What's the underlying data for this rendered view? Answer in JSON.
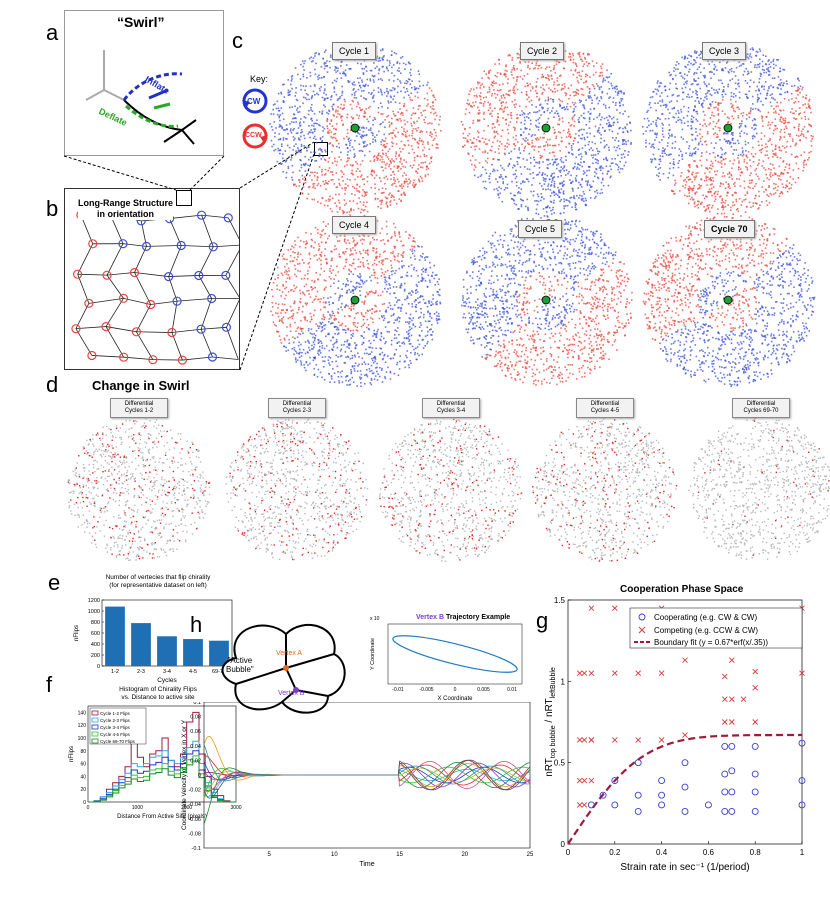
{
  "panels": {
    "a": "a",
    "b": "b",
    "c": "c",
    "d": "d",
    "e": "e",
    "f": "f",
    "g": "g",
    "h": "h"
  },
  "panel_a": {
    "title": "“Swirl”",
    "inflate": "Inflate",
    "deflate": "Deflate"
  },
  "panel_b": {
    "title_line1": "Long-Range Structure",
    "title_line2": "in orientation"
  },
  "panel_c": {
    "key_label": "Key:",
    "cw": "CW",
    "ccw": "CCW",
    "cycles": [
      "Cycle 1",
      "Cycle 2",
      "Cycle 3",
      "Cycle 4",
      "Cycle 5",
      "Cycle 70"
    ],
    "colors": {
      "red": "#e8443a",
      "blue": "#3b4fd8",
      "green": "#1f9d3a"
    }
  },
  "panel_d": {
    "title": "Change in Swirl",
    "boxes": [
      {
        "l1": "Differential",
        "l2": "Cycles 1-2"
      },
      {
        "l1": "Differential",
        "l2": "Cycles 2-3"
      },
      {
        "l1": "Differential",
        "l2": "Cycles 3-4"
      },
      {
        "l1": "Differential",
        "l2": "Cycles 4-5"
      },
      {
        "l1": "Differential",
        "l2": "Cycles 69-70"
      }
    ]
  },
  "panel_f": {
    "title1": "Histogram of Chirality Flips",
    "title2": "vs. Distance to active site",
    "ylabel": "nFlips",
    "xlabel": "Distance From Active Site (pixels)",
    "legend": [
      "Cycle 1-2 Flips",
      "Cycle 2-3 Flips",
      "Cycle 3-4 Flips",
      "Cycle 4-5 Flips",
      "Cycle 69-70 Flips"
    ],
    "yticks": [
      "0",
      "20",
      "40",
      "60",
      "80",
      "100",
      "120",
      "140"
    ],
    "xticks": [
      "0",
      "1000",
      "2000",
      "3000"
    ]
  },
  "panel_h": {
    "active1": "\"Active",
    "active2": "Bubble\"",
    "vertexA": "Vertex A",
    "vertexB": "Vertex B",
    "inset_title_prefix": "Vertex B",
    "inset_title": "Trajectory Example",
    "inset_ylabel": "Y Coordinate",
    "inset_xlabel": "X Coordinate",
    "inset_exp": "x 10",
    "inset_xticks": [
      "-0.01",
      "-0.005",
      "0",
      "0.005",
      "0.01"
    ],
    "ylabel": "Coordinate Velocity of Vertex in X or Y",
    "xlabel": "Time",
    "yticks": [
      "0.1",
      "0.08",
      "0.06",
      "0.04",
      "0.02",
      "0",
      "-0.02",
      "-0.04",
      "-0.06",
      "-0.08",
      "-0.1"
    ],
    "xticks": [
      "5",
      "10",
      "15",
      "20",
      "25"
    ]
  },
  "chart_data": [
    {
      "type": "bar",
      "title": "Number of vertecies that flip chirality",
      "subtitle": "(for representative dataset on left)",
      "categories": [
        "1-2",
        "2-3",
        "3-4",
        "4-5",
        "69-70"
      ],
      "values": [
        1080,
        780,
        540,
        490,
        460
      ],
      "xlabel": "Cycles",
      "ylabel": "nFlips",
      "yticks": [
        "0",
        "200",
        "400",
        "600",
        "800",
        "1000",
        "1200"
      ],
      "ylim": [
        0,
        1200
      ]
    },
    {
      "type": "scatter",
      "title": "Cooperation Phase Space",
      "xlabel": "Strain rate in sec⁻¹ (1/period)",
      "ylabel": "nRT",
      "ylabel_sub1": "top bubble",
      "ylabel_mid": " / nRT",
      "ylabel_sub2": "leftBubble",
      "xlim": [
        0,
        1
      ],
      "ylim": [
        0,
        1.5
      ],
      "xticks": [
        "0",
        "0.2",
        "0.4",
        "0.6",
        "0.8",
        "1"
      ],
      "yticks": [
        "0",
        "0.5",
        "1",
        "1.5"
      ],
      "legend": [
        "Cooperating (e.g. CW & CW)",
        "Competing (e.g. CCW & CW)",
        "Boundary fit (y = 0.67*erf(x/.35))"
      ],
      "series": [
        {
          "name": "Cooperating",
          "marker": "o",
          "color": "#3b3bd8",
          "x": [
            0.1,
            0.15,
            0.2,
            0.3,
            0.3,
            0.4,
            0.4,
            0.5,
            0.5,
            0.5,
            0.6,
            0.67,
            0.67,
            0.67,
            0.67,
            0.7,
            0.7,
            0.7,
            0.7,
            0.8,
            0.8,
            0.8,
            0.8,
            1,
            1,
            1,
            0.2,
            0.3,
            0.4
          ],
          "y": [
            0.24,
            0.3,
            0.24,
            0.2,
            0.5,
            0.24,
            0.39,
            0.2,
            0.35,
            0.5,
            0.24,
            0.2,
            0.32,
            0.43,
            0.6,
            0.2,
            0.32,
            0.45,
            0.6,
            0.2,
            0.32,
            0.43,
            0.6,
            0.24,
            0.39,
            0.62,
            0.39,
            0.3,
            0.3
          ]
        },
        {
          "name": "Competing",
          "marker": "x",
          "color": "#d83b3b",
          "x": [
            0.05,
            0.07,
            0.1,
            0.05,
            0.07,
            0.1,
            0.05,
            0.07,
            0.05,
            0.07,
            0.1,
            0.2,
            0.3,
            0.4,
            0.1,
            0.2,
            0.3,
            0.4,
            0.5,
            0.5,
            0.7,
            0.67,
            0.7,
            0.67,
            0.7,
            0.75,
            0.8,
            0.8,
            0.8,
            0.67,
            1,
            1,
            0.1,
            0.2,
            0.4
          ],
          "y": [
            0.24,
            0.24,
            0.39,
            0.39,
            0.39,
            0.64,
            0.64,
            0.64,
            1.05,
            1.05,
            1.05,
            1.05,
            1.05,
            1.05,
            0.64,
            0.64,
            0.64,
            0.64,
            0.67,
            1.13,
            1.13,
            0.89,
            0.89,
            0.75,
            0.75,
            0.89,
            0.75,
            0.96,
            1.06,
            1.03,
            1.05,
            1.45,
            1.45,
            1.45,
            1.45
          ]
        }
      ],
      "fit": {
        "name": "Boundary fit",
        "a": 0.67,
        "s": 0.35,
        "color": "#a0183a"
      }
    }
  ]
}
